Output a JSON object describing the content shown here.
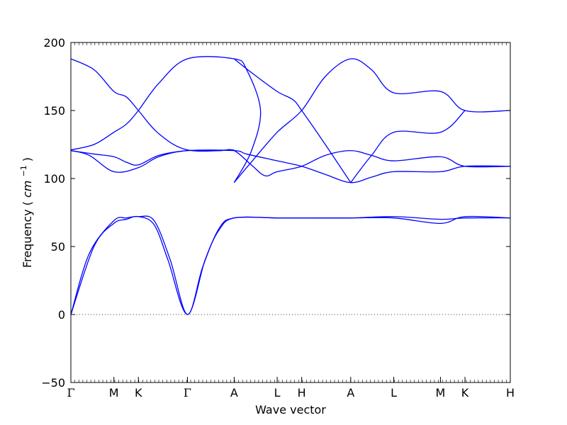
{
  "chart_data": {
    "type": "line",
    "xlabel": "Wave vector",
    "ylabel": "Frequency",
    "ylabel_unit_base": "cm",
    "ylabel_unit_exp": "−1",
    "ylim": [
      -50,
      200
    ],
    "yticks": [
      -50,
      0,
      50,
      100,
      150,
      200
    ],
    "xlim": [
      0,
      9.5
    ],
    "xticks": [
      {
        "label": "Γ",
        "pos": 0
      },
      {
        "label": "M",
        "pos": 0.93
      },
      {
        "label": "K",
        "pos": 1.46
      },
      {
        "label": "Γ",
        "pos": 2.52
      },
      {
        "label": "A",
        "pos": 3.53
      },
      {
        "label": "L",
        "pos": 4.46
      },
      {
        "label": "H",
        "pos": 4.99
      },
      {
        "label": "A",
        "pos": 6.05
      },
      {
        "label": "L",
        "pos": 6.98
      },
      {
        "label": "M",
        "pos": 7.99
      },
      {
        "label": "K",
        "pos": 8.52
      },
      {
        "label": "H",
        "pos": 9.5
      }
    ],
    "zero_line": {
      "y": 0,
      "style": "dotted"
    },
    "line_color": "#0000ff",
    "series": [
      {
        "points": [
          [
            0,
            0
          ],
          [
            0.5,
            50
          ],
          [
            0.93,
            67
          ],
          [
            1.2,
            70
          ],
          [
            1.46,
            72
          ],
          [
            1.8,
            66
          ],
          [
            2.1,
            40
          ],
          [
            2.52,
            0
          ],
          [
            2.9,
            40
          ],
          [
            3.2,
            62
          ],
          [
            3.53,
            71
          ],
          [
            4.46,
            71
          ],
          [
            4.99,
            71
          ],
          [
            6.05,
            71
          ],
          [
            6.98,
            71
          ],
          [
            7.99,
            67
          ],
          [
            8.52,
            72
          ],
          [
            9.5,
            71
          ]
        ]
      },
      {
        "points": [
          [
            0,
            0
          ],
          [
            0.4,
            45
          ],
          [
            0.93,
            69
          ],
          [
            1.2,
            71
          ],
          [
            1.46,
            72
          ],
          [
            1.8,
            69
          ],
          [
            2.15,
            40
          ],
          [
            2.52,
            0
          ],
          [
            2.85,
            35
          ],
          [
            3.2,
            63
          ],
          [
            3.53,
            71
          ],
          [
            4.46,
            71
          ],
          [
            4.99,
            71
          ],
          [
            6.05,
            71
          ],
          [
            6.98,
            72
          ],
          [
            7.99,
            70
          ],
          [
            8.52,
            71
          ],
          [
            9.5,
            71
          ]
        ]
      },
      {
        "points": [
          [
            0,
            120.5
          ],
          [
            0.4,
            117
          ],
          [
            0.93,
            105
          ],
          [
            1.46,
            108
          ],
          [
            1.9,
            116
          ],
          [
            2.52,
            120.5
          ],
          [
            3.53,
            120.5
          ],
          [
            3.8,
            118
          ],
          [
            4.46,
            113
          ],
          [
            4.99,
            109
          ],
          [
            5.5,
            103
          ],
          [
            6.05,
            97
          ],
          [
            6.5,
            101
          ],
          [
            6.98,
            105
          ],
          [
            7.99,
            105
          ],
          [
            8.52,
            109
          ],
          [
            9.5,
            109
          ]
        ]
      },
      {
        "points": [
          [
            0,
            120.5
          ],
          [
            0.5,
            118
          ],
          [
            0.93,
            116
          ],
          [
            1.2,
            112
          ],
          [
            1.46,
            110
          ],
          [
            1.9,
            117
          ],
          [
            2.52,
            120.5
          ],
          [
            3.2,
            120.5
          ],
          [
            3.53,
            120.5
          ],
          [
            3.9,
            110
          ],
          [
            4.2,
            102
          ],
          [
            4.46,
            105
          ],
          [
            4.99,
            109
          ],
          [
            5.5,
            117
          ],
          [
            6.05,
            120.5
          ],
          [
            6.5,
            117
          ],
          [
            6.98,
            113
          ],
          [
            7.99,
            116
          ],
          [
            8.52,
            109
          ],
          [
            9.5,
            109
          ]
        ]
      },
      {
        "points": [
          [
            0,
            121
          ],
          [
            0.5,
            125
          ],
          [
            0.93,
            134
          ],
          [
            1.2,
            140
          ],
          [
            1.46,
            150
          ],
          [
            1.9,
            170
          ],
          [
            2.52,
            188
          ],
          [
            3.53,
            188
          ],
          [
            3.8,
            180
          ],
          [
            4.1,
            150
          ],
          [
            3.9,
            120
          ],
          [
            3.53,
            97
          ]
        ]
      },
      {
        "points": [
          [
            3.53,
            97
          ],
          [
            3.9,
            112
          ],
          [
            4.46,
            134
          ],
          [
            4.99,
            150
          ],
          [
            5.5,
            175
          ],
          [
            6.05,
            188
          ],
          [
            6.5,
            180
          ],
          [
            6.98,
            163
          ],
          [
            7.99,
            164
          ],
          [
            8.52,
            150
          ],
          [
            9.5,
            150
          ]
        ]
      },
      {
        "points": [
          [
            0,
            188
          ],
          [
            0.5,
            180
          ],
          [
            0.93,
            164
          ],
          [
            1.2,
            160
          ],
          [
            1.46,
            150
          ],
          [
            1.9,
            133
          ],
          [
            2.52,
            121
          ],
          [
            3.53,
            121
          ]
        ]
      },
      {
        "points": [
          [
            3.53,
            188
          ],
          [
            3.9,
            178
          ],
          [
            4.46,
            164
          ],
          [
            4.8,
            158
          ],
          [
            4.99,
            150
          ],
          [
            5.5,
            125
          ],
          [
            6.05,
            97
          ]
        ]
      },
      {
        "points": [
          [
            6.05,
            97
          ],
          [
            6.5,
            117
          ],
          [
            6.98,
            134
          ],
          [
            7.99,
            134
          ],
          [
            8.52,
            150
          ]
        ]
      }
    ]
  }
}
